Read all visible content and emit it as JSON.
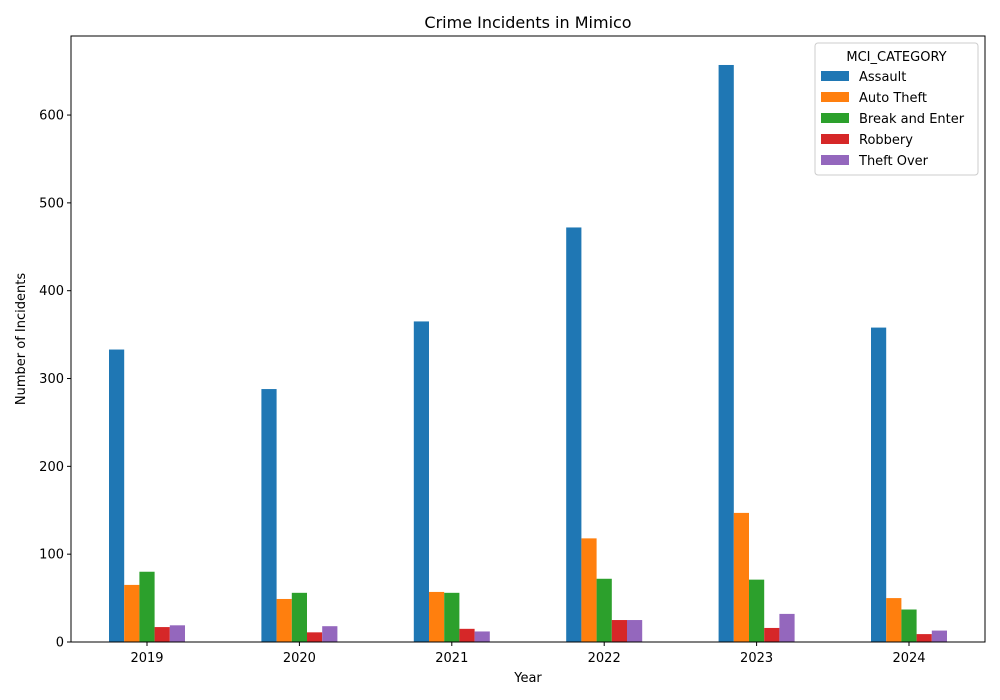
{
  "chart_data": {
    "type": "bar",
    "title": "Crime Incidents in Mimico",
    "xlabel": "Year",
    "ylabel": "Number of Incidents",
    "categories": [
      "2019",
      "2020",
      "2021",
      "2022",
      "2023",
      "2024"
    ],
    "ylim": [
      0,
      690
    ],
    "yticks": [
      0,
      100,
      200,
      300,
      400,
      500,
      600
    ],
    "grid": false,
    "legend": {
      "title": "MCI_CATEGORY",
      "placement": "top-right"
    },
    "series": [
      {
        "name": "Assault",
        "color": "#1f77b4",
        "values": [
          333,
          288,
          365,
          472,
          657,
          358
        ]
      },
      {
        "name": "Auto Theft",
        "color": "#ff7f0e",
        "values": [
          65,
          49,
          57,
          118,
          147,
          50
        ]
      },
      {
        "name": "Break and Enter",
        "color": "#2ca02c",
        "values": [
          80,
          56,
          56,
          72,
          71,
          37
        ]
      },
      {
        "name": "Robbery",
        "color": "#d62728",
        "values": [
          17,
          11,
          15,
          25,
          16,
          9
        ]
      },
      {
        "name": "Theft Over",
        "color": "#9467bd",
        "values": [
          19,
          18,
          12,
          25,
          32,
          13
        ]
      }
    ]
  }
}
